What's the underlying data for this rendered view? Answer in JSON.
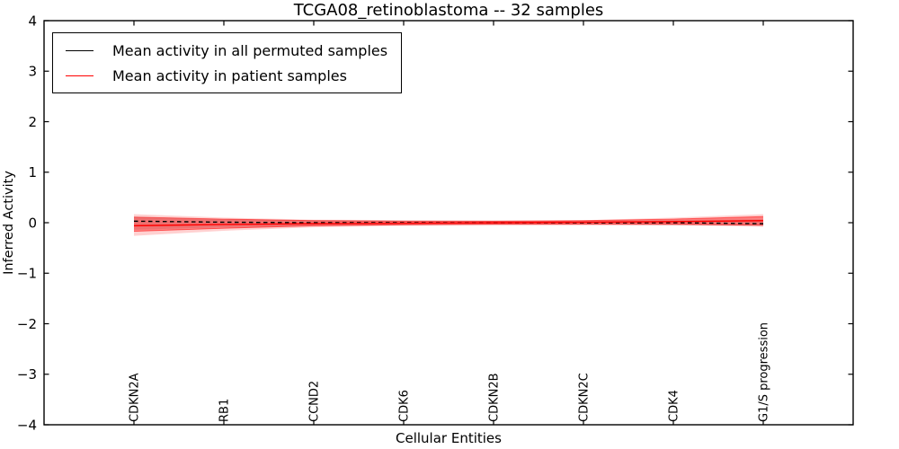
{
  "chart_data": {
    "type": "line",
    "title": "TCGA08_retinoblastoma -- 32 samples",
    "xlabel": "Cellular Entities",
    "ylabel": "Inferred Activity",
    "ylim": [
      -4,
      4
    ],
    "yticks": [
      -4,
      -3,
      -2,
      -1,
      0,
      1,
      2,
      3,
      4
    ],
    "grid": false,
    "legend_position": "upper left",
    "frame_color": "#000000",
    "background": "#ffffff",
    "categories": [
      "CDKN2A",
      "RB1",
      "CCND2",
      "CDK6",
      "CDKN2B",
      "CDKN2C",
      "CDK4",
      "G1/S progression"
    ],
    "series": [
      {
        "name": "Mean activity in all permuted samples",
        "color": "#000000",
        "line_style": "dashed",
        "values": [
          0.03,
          0.01,
          0.0,
          0.0,
          0.0,
          0.0,
          0.0,
          -0.02
        ]
      },
      {
        "name": "Mean activity in patient samples",
        "color": "#ff0000",
        "line_style": "solid",
        "values": [
          -0.06,
          -0.035,
          -0.02,
          -0.01,
          0.0,
          0.01,
          0.02,
          0.04
        ]
      }
    ],
    "bands": [
      {
        "name": "permuted-samples-range",
        "color": "#999999",
        "opacity": 0.3,
        "edge": false,
        "upper": [
          0.12,
          0.07,
          0.05,
          0.04,
          0.04,
          0.04,
          0.05,
          0.07
        ],
        "lower": [
          -0.14,
          -0.09,
          -0.06,
          -0.05,
          -0.04,
          -0.04,
          -0.05,
          -0.06
        ]
      },
      {
        "name": "patient-samples-range-outer",
        "color": "#ff0000",
        "opacity": 0.18,
        "edge": false,
        "upper": [
          0.17,
          0.1,
          0.06,
          0.05,
          0.04,
          0.05,
          0.1,
          0.17
        ],
        "lower": [
          -0.26,
          -0.16,
          -0.09,
          -0.06,
          -0.05,
          -0.04,
          -0.05,
          -0.08
        ]
      },
      {
        "name": "patient-samples-range-inner",
        "color": "#ff0000",
        "opacity": 0.38,
        "edge": true,
        "upper": [
          0.11,
          0.07,
          0.04,
          0.03,
          0.03,
          0.04,
          0.07,
          0.12
        ],
        "lower": [
          -0.17,
          -0.11,
          -0.06,
          -0.04,
          -0.03,
          -0.03,
          -0.03,
          -0.05
        ]
      }
    ]
  }
}
